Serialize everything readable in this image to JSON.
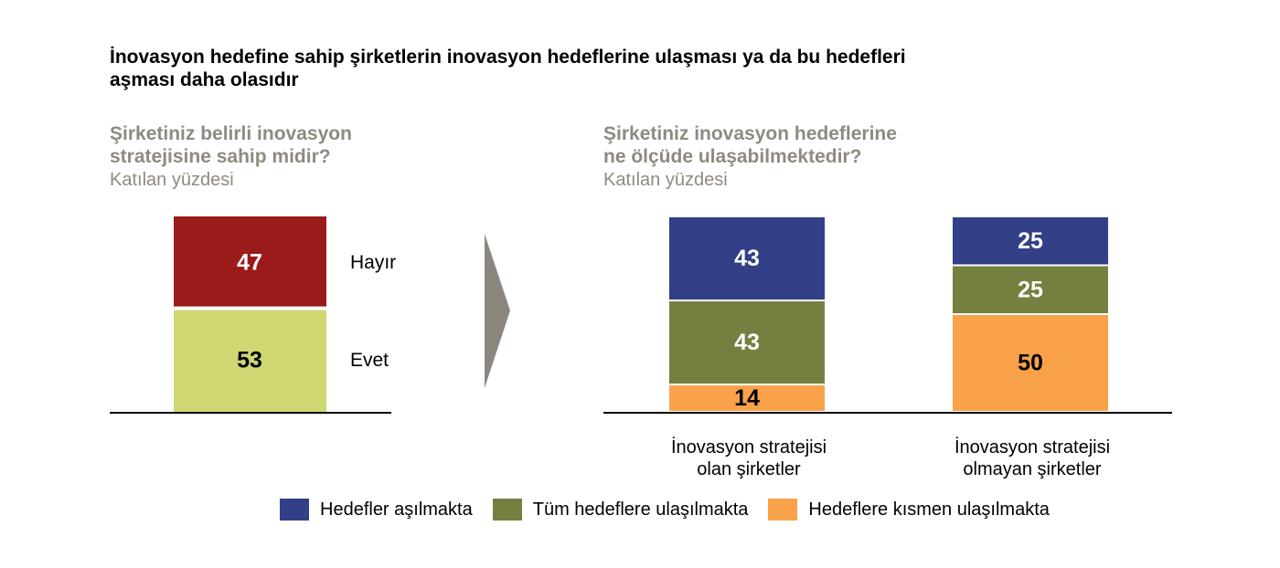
{
  "title": "İnovasyon hedefine sahip şirketlerin inovasyon hedeflerine ulaşması ya da bu hedefleri aşması daha olasıdır",
  "colors": {
    "hayir": "#9b1b1b",
    "evet": "#cfd773",
    "asilmakta": "#333f87",
    "tum": "#74803f",
    "kismen": "#f9a24a",
    "arrow": "#8c877e",
    "axis": "#000000"
  },
  "left_panel": {
    "subtitle_line1": "Şirketiniz belirli inovasyon",
    "subtitle_line2": "stratejisine sahip midir?",
    "unit": "Katılan yüzdesi"
  },
  "right_panel": {
    "subtitle_line1": "Şirketiniz inovasyon hedeflerine",
    "subtitle_line2": "ne ölçüde ulaşabilmektedir?",
    "unit": "Katılan yüzdesi"
  },
  "chart_data": [
    {
      "type": "bar",
      "stacked": true,
      "categories": [
        ""
      ],
      "series": [
        {
          "name": "Evet",
          "values": [
            53
          ]
        },
        {
          "name": "Hayır",
          "values": [
            47
          ]
        }
      ],
      "ylim": [
        0,
        100
      ]
    },
    {
      "type": "bar",
      "stacked": true,
      "categories": [
        "İnovasyon stratejisi olan şirketler",
        "İnovasyon stratejisi olmayan şirketler"
      ],
      "category_lines": [
        [
          "İnovasyon stratejisi",
          "olan şirketler"
        ],
        [
          "İnovasyon stratejisi",
          "olmayan şirketler"
        ]
      ],
      "series": [
        {
          "name": "Hedeflere kısmen ulaşılmakta",
          "values": [
            14,
            50
          ]
        },
        {
          "name": "Tüm hedeflere ulaşılmakta",
          "values": [
            43,
            25
          ]
        },
        {
          "name": "Hedefler aşılmakta",
          "values": [
            43,
            25
          ]
        }
      ],
      "ylim": [
        0,
        100
      ],
      "legend": "bottom"
    }
  ],
  "legend": [
    {
      "label": "Hedefler aşılmakta",
      "color": "#333f87"
    },
    {
      "label": "Tüm hedeflere ulaşılmakta",
      "color": "#74803f"
    },
    {
      "label": "Hedeflere kısmen ulaşılmakta",
      "color": "#f9a24a"
    }
  ]
}
